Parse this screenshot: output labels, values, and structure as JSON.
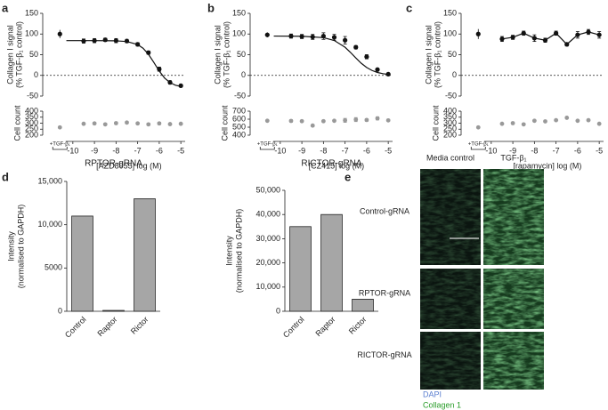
{
  "panel_labels": [
    "a",
    "b",
    "c",
    "d",
    "e"
  ],
  "chart_data": [
    {
      "type": "line",
      "ylabel": [
        "Collagen I signal",
        "(% TGF-β₁ control)"
      ],
      "color": "#111111",
      "xlim": [
        -10.9,
        -4.8
      ],
      "ylim": [
        -50,
        150
      ],
      "yticks": [
        -50,
        0,
        50,
        100,
        150
      ],
      "reference_line": 0,
      "control": {
        "x": -10.6,
        "value": 100,
        "error": 10
      },
      "x": [
        -9.5,
        -9,
        -8.5,
        -8,
        -7.5,
        -7,
        -6.5,
        -6,
        -5.5,
        -5
      ],
      "values": [
        83,
        84,
        86,
        84,
        83,
        75,
        55,
        15,
        -17,
        -25
      ],
      "errors": [
        5,
        5,
        4,
        5,
        4,
        4,
        4,
        5,
        4,
        3
      ],
      "fit": {
        "x": [
          -10.3,
          -9,
          -8,
          -7.5,
          -7,
          -6.75,
          -6.5,
          -6.25,
          -6,
          -5.75,
          -5.5,
          -5.25,
          -5
        ],
        "values": [
          84,
          84,
          83.5,
          81.8,
          74.5,
          65.6,
          51,
          31.3,
          10.4,
          -6.5,
          -17.5,
          -23.7,
          -26.9
        ]
      }
    },
    {
      "type": "scatter",
      "ylabel": "Cell count",
      "color": "#999999",
      "xlabel": "[AZD8055] log (M)",
      "control_label": "+TGF-β₁",
      "xlim": [
        -10.9,
        -4.8
      ],
      "xticks": [
        -10,
        -9,
        -8,
        -7,
        -6,
        -5
      ],
      "ylim": [
        200,
        400
      ],
      "yticks": [
        200,
        250,
        300,
        350,
        400
      ],
      "control": {
        "x": -10.6,
        "value": 265,
        "error": 6
      },
      "x": [
        -9.5,
        -9,
        -8.5,
        -8,
        -7.5,
        -7,
        -6.5,
        -6,
        -5.5,
        -5
      ],
      "values": [
        295,
        298,
        290,
        300,
        305,
        298,
        290,
        298,
        292,
        295
      ],
      "errors": [
        8,
        8,
        6,
        8,
        8,
        6,
        8,
        10,
        8,
        6
      ]
    },
    {
      "type": "line",
      "ylabel": [
        "Collagen I signal",
        "(% TGF-β₁ control)"
      ],
      "color": "#111111",
      "xlim": [
        -10.9,
        -4.8
      ],
      "ylim": [
        -50,
        150
      ],
      "yticks": [
        -50,
        0,
        50,
        100,
        150
      ],
      "reference_line": 0,
      "control": {
        "x": -10.6,
        "value": 98,
        "error": 6
      },
      "x": [
        -9.5,
        -9,
        -8.5,
        -8,
        -7.5,
        -7,
        -6.5,
        -6,
        -5.5,
        -5
      ],
      "values": [
        95,
        94,
        93,
        95,
        92,
        85,
        68,
        45,
        14,
        3
      ],
      "errors": [
        5,
        5,
        6,
        8,
        7,
        9,
        4,
        5,
        3,
        2
      ],
      "fit": {
        "x": [
          -10.3,
          -9,
          -8,
          -7.5,
          -7,
          -6.75,
          -6.5,
          -6.25,
          -6,
          -5.75,
          -5.5,
          -5.25,
          -5
        ],
        "values": [
          95,
          94.6,
          91.3,
          84.4,
          68,
          55.6,
          42,
          29.3,
          19.1,
          11.8,
          7,
          4.1,
          2.3
        ]
      }
    },
    {
      "type": "scatter",
      "ylabel": "Cell count",
      "color": "#999999",
      "xlabel": "[CZ415] log (M)",
      "control_label": "+TGF-β₁",
      "xlim": [
        -10.9,
        -4.8
      ],
      "xticks": [
        -10,
        -9,
        -8,
        -7,
        -6,
        -5
      ],
      "ylim": [
        400,
        700
      ],
      "yticks": [
        400,
        500,
        600,
        700
      ],
      "control": {
        "x": -10.6,
        "value": 580,
        "error": 15
      },
      "x": [
        -9.5,
        -9,
        -8.5,
        -8,
        -7.5,
        -7,
        -6.5,
        -6,
        -5.5,
        -5
      ],
      "values": [
        578,
        575,
        520,
        575,
        580,
        585,
        595,
        590,
        610,
        585
      ],
      "errors": [
        15,
        10,
        12,
        10,
        10,
        25,
        25,
        15,
        20,
        10
      ]
    },
    {
      "type": "line",
      "ylabel": [
        "Collagen I signal",
        "(% TGF-β₁ control)"
      ],
      "color": "#111111",
      "connect_points": true,
      "xlim": [
        -10.9,
        -4.8
      ],
      "ylim": [
        -50,
        150
      ],
      "yticks": [
        -50,
        0,
        50,
        100,
        150
      ],
      "reference_line": 0,
      "control": {
        "x": -10.6,
        "value": 100,
        "error": 12
      },
      "x": [
        -9.5,
        -9,
        -8.5,
        -8,
        -7.5,
        -7,
        -6.5,
        -6,
        -5.5,
        -5
      ],
      "values": [
        88,
        92,
        102,
        90,
        85,
        102,
        75,
        98,
        105,
        98
      ],
      "errors": [
        6,
        5,
        5,
        8,
        5,
        5,
        4,
        8,
        6,
        8
      ]
    },
    {
      "type": "scatter",
      "ylabel": "Cell count",
      "color": "#999999",
      "xlabel": "[rapamycin] log (M)",
      "control_label": "+TGF-β₁",
      "xlim": [
        -10.9,
        -4.8
      ],
      "xticks": [
        -10,
        -9,
        -8,
        -7,
        -6,
        -5
      ],
      "ylim": [
        200,
        400
      ],
      "yticks": [
        200,
        250,
        300,
        350,
        400
      ],
      "control": {
        "x": -10.6,
        "value": 265,
        "error": 5
      },
      "x": [
        -9.5,
        -9,
        -8.5,
        -8,
        -7.5,
        -7,
        -6.5,
        -6,
        -5.5,
        -5
      ],
      "values": [
        295,
        300,
        290,
        320,
        315,
        325,
        345,
        320,
        325,
        295
      ],
      "errors": [
        5,
        5,
        5,
        5,
        5,
        5,
        5,
        5,
        5,
        5
      ]
    },
    {
      "type": "bar",
      "title": "RPTOR-gRNA",
      "ylabel": [
        "Intensity",
        "(normalised to GAPDH)"
      ],
      "color": "#a6a6a6",
      "categories": [
        "Control",
        "Raptor",
        "Rictor"
      ],
      "values": [
        11000,
        100,
        13000
      ],
      "ylim": [
        0,
        15000
      ],
      "yticks": [
        0,
        5000,
        {
          "value": 10000,
          "label": "10,000"
        },
        {
          "value": 15000,
          "label": "15,000"
        }
      ]
    },
    {
      "type": "bar",
      "title": "RICTOR-gRNA",
      "ylabel": [
        "Intensity",
        "(normalised to GAPDH)"
      ],
      "color": "#a6a6a6",
      "categories": [
        "Control",
        "Raptor",
        "Rictor"
      ],
      "values": [
        35000,
        40000,
        5000
      ],
      "ylim": [
        0,
        50000
      ],
      "yticks": [
        0,
        {
          "value": 10000,
          "label": "10,000"
        },
        {
          "value": 20000,
          "label": "20,000"
        },
        {
          "value": 30000,
          "label": "30,000"
        },
        {
          "value": 40000,
          "label": "40,000"
        },
        {
          "value": 50000,
          "label": "50,000"
        }
      ]
    }
  ],
  "image_panel": {
    "column_labels": [
      "Media control",
      "TGF-β₁"
    ],
    "row_labels": [
      "Control-gRNA",
      "RPTOR-gRNA",
      "RICTOR-gRNA"
    ],
    "legend": [
      {
        "name": "DAPI",
        "color": "#5b7fd0"
      },
      {
        "name": "Collagen 1",
        "color": "#2a9d2a"
      }
    ]
  }
}
